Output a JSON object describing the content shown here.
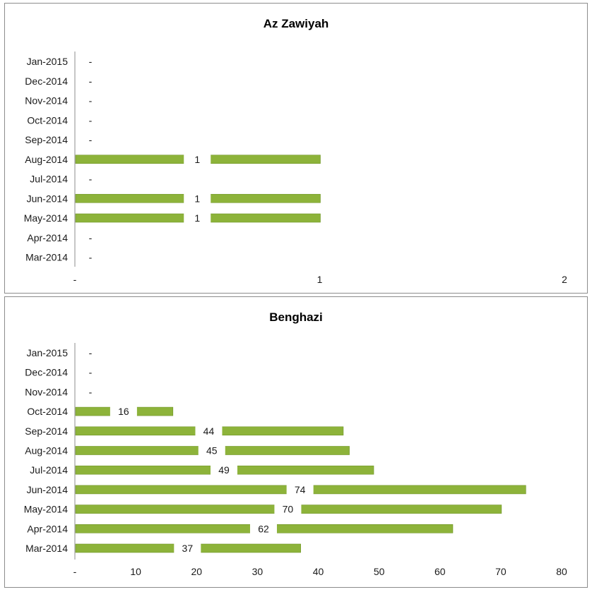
{
  "chart_data": [
    {
      "type": "bar",
      "orientation": "horizontal",
      "title": "Az Zawiyah",
      "categories": [
        "Jan-2015",
        "Dec-2014",
        "Nov-2014",
        "Oct-2014",
        "Sep-2014",
        "Aug-2014",
        "Jul-2014",
        "Jun-2014",
        "May-2014",
        "Apr-2014",
        "Mar-2014"
      ],
      "values": [
        0,
        0,
        0,
        0,
        0,
        1,
        0,
        1,
        1,
        0,
        0
      ],
      "value_labels": [
        "-",
        "-",
        "-",
        "-",
        "-",
        "1",
        "-",
        "1",
        "1",
        "-",
        "-"
      ],
      "xlim": [
        0,
        2
      ],
      "xticks": [
        0,
        1,
        2
      ],
      "xtick_labels": [
        "-",
        "1",
        "2"
      ],
      "grid": false,
      "bar_color": "#8db33a"
    },
    {
      "type": "bar",
      "orientation": "horizontal",
      "title": "Benghazi",
      "categories": [
        "Jan-2015",
        "Dec-2014",
        "Nov-2014",
        "Oct-2014",
        "Sep-2014",
        "Aug-2014",
        "Jul-2014",
        "Jun-2014",
        "May-2014",
        "Apr-2014",
        "Mar-2014"
      ],
      "values": [
        0,
        0,
        0,
        16,
        44,
        45,
        49,
        74,
        70,
        62,
        37
      ],
      "value_labels": [
        "-",
        "-",
        "-",
        "16",
        "44",
        "45",
        "49",
        "74",
        "70",
        "62",
        "37"
      ],
      "xlim": [
        0,
        80
      ],
      "xticks": [
        0,
        10,
        20,
        30,
        40,
        50,
        60,
        70,
        80
      ],
      "xtick_labels": [
        "-",
        "10",
        "20",
        "30",
        "40",
        "50",
        "60",
        "70",
        "80"
      ],
      "grid": false,
      "bar_color": "#8db33a"
    }
  ]
}
